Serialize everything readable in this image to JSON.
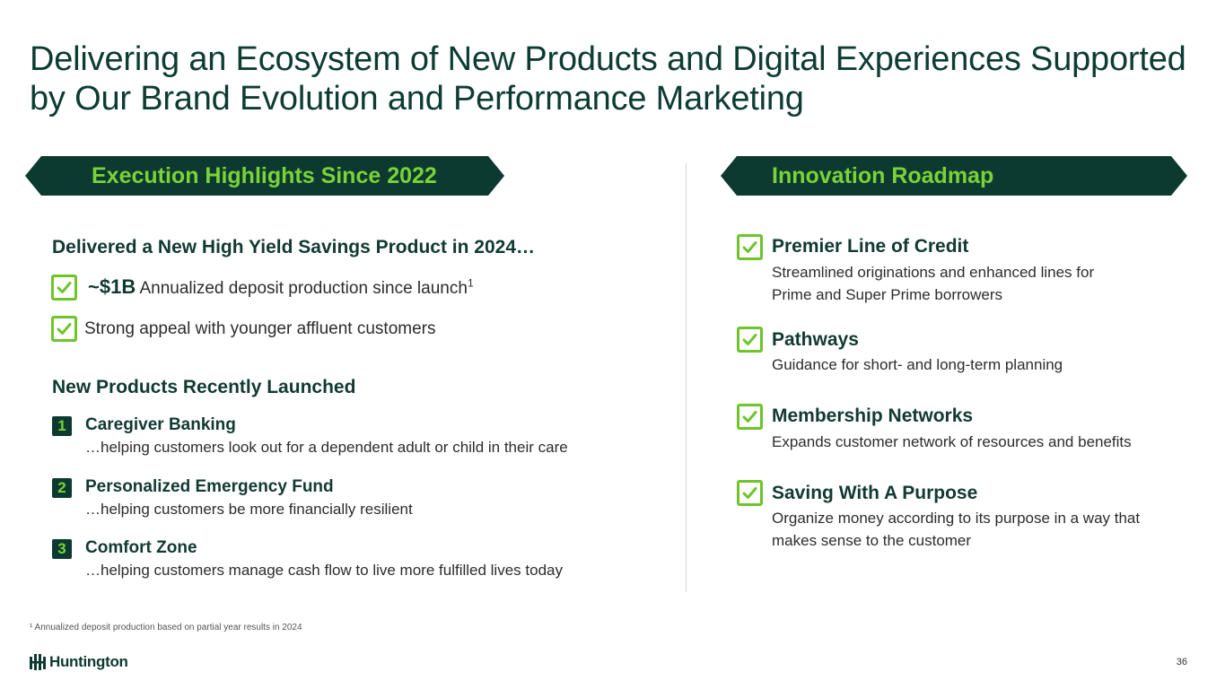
{
  "title": {
    "line1": "Delivering an Ecosystem of New Products and Digital Experiences Supported",
    "line2": "by Our Brand Evolution and Performance Marketing"
  },
  "left": {
    "banner": "Execution Highlights Since 2022",
    "savings_heading": "Delivered a New High Yield Savings Product in 2024…",
    "highlight1_big": "~$1B",
    "highlight1_text": "Annualized deposit production since launch",
    "highlight1_sup": "1",
    "highlight2_text": "Strong appeal with younger affluent customers",
    "products_heading": "New Products Recently Launched",
    "products": [
      {
        "num": "1",
        "title": "Caregiver Banking",
        "desc": "…helping customers look out for a dependent adult or child in their care"
      },
      {
        "num": "2",
        "title": "Personalized Emergency Fund",
        "desc": "…helping customers be more financially resilient"
      },
      {
        "num": "3",
        "title": "Comfort Zone",
        "desc": "…helping customers manage cash flow to live more fulfilled lives today"
      }
    ]
  },
  "right": {
    "banner": "Innovation Roadmap",
    "items": [
      {
        "title": "Premier Line of Credit",
        "desc1": "Streamlined originations and enhanced lines for",
        "desc2": "Prime and Super Prime borrowers"
      },
      {
        "title": "Pathways",
        "desc1": "Guidance for short- and long-term planning",
        "desc2": ""
      },
      {
        "title": "Membership Networks",
        "desc1": "Expands customer network of resources and benefits",
        "desc2": ""
      },
      {
        "title": "Saving With A Purpose",
        "desc1": "Organize money according to its purpose in a way that",
        "desc2": "makes sense to the customer"
      }
    ]
  },
  "footnote": "¹ Annualized deposit production based on partial year results in 2024",
  "logo_text": "Huntington",
  "page_number": "36",
  "colors": {
    "dark_green": "#0c3a31",
    "accent_green": "#6fc42b",
    "title_green": "#0d3c33"
  },
  "icons": [
    "checkbox-check-icon",
    "huntington-logo-icon"
  ]
}
